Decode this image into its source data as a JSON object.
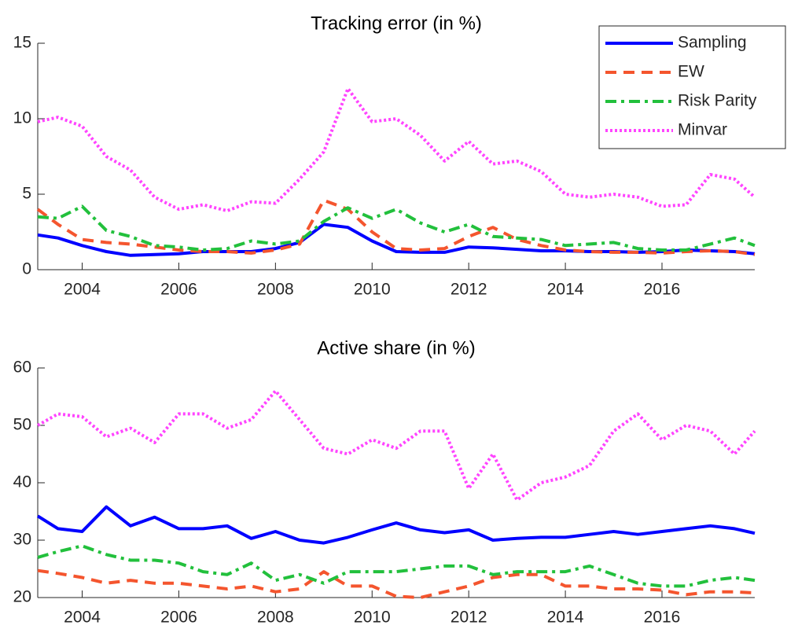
{
  "chart_data": [
    {
      "type": "line",
      "title": "Tracking error (in %)",
      "x": [
        2003.08,
        2003.5,
        2004,
        2004.5,
        2005,
        2005.5,
        2006,
        2006.5,
        2007,
        2007.5,
        2008,
        2008.5,
        2009,
        2009.5,
        2010,
        2010.5,
        2011,
        2011.5,
        2012,
        2012.5,
        2013,
        2013.5,
        2014,
        2014.5,
        2015,
        2015.5,
        2016,
        2016.5,
        2017,
        2017.5,
        2017.92
      ],
      "series": [
        {
          "name": "Sampling",
          "color": "#0000ff",
          "style": "solid",
          "values": [
            2.3,
            2.1,
            1.6,
            1.2,
            0.95,
            1.0,
            1.05,
            1.2,
            1.2,
            1.2,
            1.4,
            1.8,
            3.0,
            2.8,
            1.9,
            1.2,
            1.15,
            1.15,
            1.5,
            1.45,
            1.35,
            1.25,
            1.25,
            1.2,
            1.2,
            1.15,
            1.2,
            1.3,
            1.25,
            1.2,
            1.05
          ]
        },
        {
          "name": "EW",
          "color": "#f4552e",
          "style": "dashed",
          "values": [
            4.0,
            3.0,
            2.0,
            1.8,
            1.7,
            1.5,
            1.3,
            1.2,
            1.2,
            1.1,
            1.3,
            1.7,
            4.6,
            4.0,
            2.5,
            1.4,
            1.3,
            1.4,
            2.2,
            2.8,
            2.0,
            1.6,
            1.3,
            1.2,
            1.15,
            1.15,
            1.1,
            1.2,
            1.25,
            1.2,
            1.0
          ]
        },
        {
          "name": "Risk Parity",
          "color": "#22c03c",
          "style": "dashdot",
          "values": [
            3.5,
            3.4,
            4.2,
            2.6,
            2.2,
            1.6,
            1.5,
            1.3,
            1.4,
            1.9,
            1.7,
            1.9,
            3.2,
            4.1,
            3.4,
            4.0,
            3.1,
            2.5,
            3.0,
            2.2,
            2.1,
            2.0,
            1.6,
            1.7,
            1.8,
            1.4,
            1.3,
            1.3,
            1.7,
            2.1,
            1.6
          ]
        },
        {
          "name": "Minvar",
          "color": "#ff44ff",
          "style": "dotted",
          "values": [
            9.8,
            10.1,
            9.5,
            7.5,
            6.6,
            4.8,
            4.0,
            4.3,
            3.9,
            4.5,
            4.4,
            6.0,
            7.8,
            12.0,
            9.8,
            10.0,
            8.9,
            7.2,
            8.5,
            7.0,
            7.2,
            6.5,
            5.0,
            4.8,
            5.0,
            4.8,
            4.2,
            4.3,
            6.3,
            6.0,
            4.8
          ]
        }
      ],
      "xlim": [
        2003.08,
        2017.92
      ],
      "xticks": [
        2004,
        2006,
        2008,
        2010,
        2012,
        2014,
        2016
      ],
      "ylim": [
        0,
        15
      ],
      "yticks": [
        0,
        5,
        10,
        15
      ],
      "grid": false,
      "legend": "northeast"
    },
    {
      "type": "line",
      "title": "Active share (in %)",
      "x": [
        2003.08,
        2003.5,
        2004,
        2004.5,
        2005,
        2005.5,
        2006,
        2006.5,
        2007,
        2007.5,
        2008,
        2008.5,
        2009,
        2009.5,
        2010,
        2010.5,
        2011,
        2011.5,
        2012,
        2012.5,
        2013,
        2013.5,
        2014,
        2014.5,
        2015,
        2015.5,
        2016,
        2016.5,
        2017,
        2017.5,
        2017.92
      ],
      "series": [
        {
          "color": "#0000ff",
          "style": "solid",
          "values": [
            34.2,
            32,
            31.5,
            35.8,
            32.5,
            34,
            32,
            32,
            32.5,
            30.3,
            31.5,
            30,
            29.5,
            30.5,
            31.8,
            33,
            31.8,
            31.3,
            31.8,
            30,
            30.3,
            30.5,
            30.5,
            31,
            31.5,
            31,
            31.5,
            32,
            32.5,
            32,
            31.2
          ]
        },
        {
          "color": "#f4552e",
          "style": "dashed",
          "values": [
            24.7,
            24.2,
            23.5,
            22.5,
            23,
            22.5,
            22.5,
            22,
            21.5,
            22,
            21,
            21.5,
            24.5,
            22,
            22,
            20.2,
            20,
            21,
            22,
            23.5,
            24,
            24,
            22,
            22,
            21.5,
            21.5,
            21.3,
            20.5,
            21,
            21,
            20.8
          ]
        },
        {
          "color": "#22c03c",
          "style": "dashdot",
          "values": [
            27,
            28,
            29,
            27.5,
            26.5,
            26.5,
            26,
            24.5,
            24,
            26,
            23,
            24,
            22.5,
            24.5,
            24.5,
            24.5,
            25,
            25.5,
            25.5,
            24,
            24.5,
            24.5,
            24.5,
            25.5,
            24,
            22.5,
            22,
            22,
            23,
            23.5,
            23
          ]
        },
        {
          "color": "#ff44ff",
          "style": "dotted",
          "values": [
            50,
            52,
            51.5,
            48,
            49.5,
            47,
            52,
            52,
            49.5,
            51,
            56,
            51,
            46,
            45,
            47.5,
            46,
            49,
            49,
            39,
            45,
            37,
            40,
            41,
            43,
            49,
            52,
            47.5,
            50,
            49,
            45,
            49
          ]
        }
      ],
      "xlim": [
        2003.08,
        2017.92
      ],
      "xticks": [
        2004,
        2006,
        2008,
        2010,
        2012,
        2014,
        2016
      ],
      "ylim": [
        20,
        60
      ],
      "yticks": [
        20,
        30,
        40,
        50,
        60
      ],
      "grid": false
    }
  ]
}
